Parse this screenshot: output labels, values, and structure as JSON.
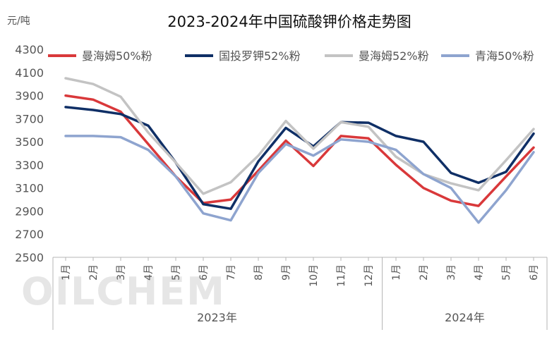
{
  "chart_data": {
    "type": "line",
    "title": "2023-2024年中国硫酸钾价格走势图",
    "unit_label": "元/吨",
    "categories": [
      "1月",
      "2月",
      "3月",
      "4月",
      "5月",
      "6月",
      "7月",
      "8月",
      "9月",
      "10月",
      "11月",
      "12月",
      "1月",
      "2月",
      "3月",
      "4月",
      "5月",
      "6月"
    ],
    "year_groups": [
      {
        "label": "2023年",
        "start": 0,
        "end": 11
      },
      {
        "label": "2024年",
        "start": 12,
        "end": 17
      }
    ],
    "ylim": [
      2500,
      4300
    ],
    "yticks": [
      2500,
      2700,
      2900,
      3100,
      3300,
      3500,
      3700,
      3900,
      4100,
      4300
    ],
    "grid": false,
    "legend_position": "top",
    "series": [
      {
        "name": "曼海姆50%粉",
        "color": "#d9383a",
        "values": [
          3900,
          3865,
          3760,
          3480,
          3200,
          2970,
          3000,
          3250,
          3510,
          3290,
          3550,
          3530,
          3300,
          3100,
          2990,
          2945,
          3200,
          3450
        ]
      },
      {
        "name": "国投罗钾52%粉",
        "color": "#0f2f66",
        "values": [
          3800,
          3775,
          3740,
          3640,
          3320,
          2960,
          2920,
          3330,
          3620,
          3460,
          3670,
          3665,
          3550,
          3500,
          3230,
          3145,
          3240,
          3570
        ]
      },
      {
        "name": "曼海姆52%粉",
        "color": "#c3c3c3",
        "values": [
          4050,
          4000,
          3890,
          3580,
          3320,
          3050,
          3150,
          3380,
          3680,
          3440,
          3670,
          3630,
          3370,
          3220,
          3140,
          3080,
          3340,
          3610
        ]
      },
      {
        "name": "青海50%粉",
        "color": "#8ea4cf",
        "values": [
          3550,
          3550,
          3540,
          3430,
          3200,
          2880,
          2820,
          3230,
          3480,
          3380,
          3520,
          3500,
          3430,
          3220,
          3100,
          2800,
          3080,
          3410
        ]
      }
    ]
  },
  "watermark": "OILCHEM"
}
